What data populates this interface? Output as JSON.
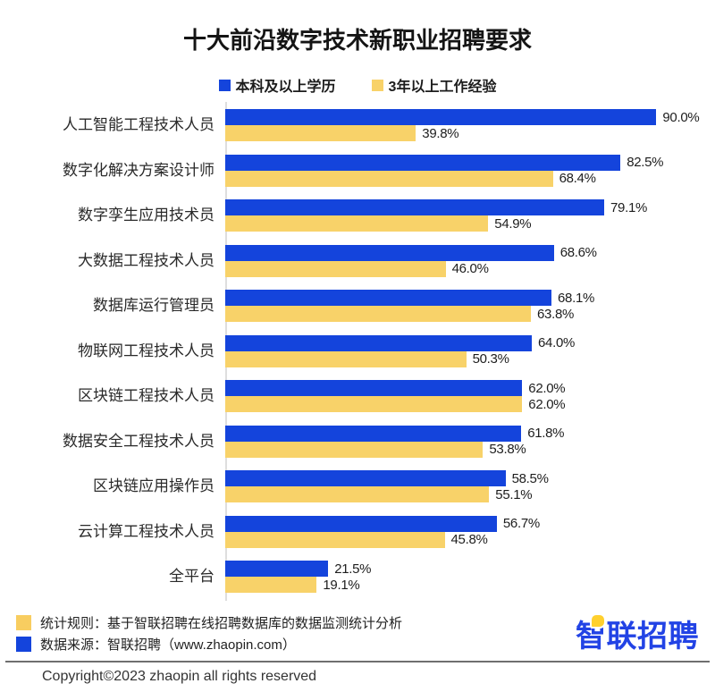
{
  "title": "十大前沿数字技术新职业招聘要求",
  "legend": {
    "items": [
      {
        "label": "本科及以上学历",
        "color": "#1444dc"
      },
      {
        "label": "3年以上工作经验",
        "color": "#f8d269"
      }
    ]
  },
  "chart_data": {
    "type": "bar",
    "orientation": "horizontal",
    "title": "十大前沿数字技术新职业招聘要求",
    "categories": [
      "人工智能工程技术人员",
      "数字化解决方案设计师",
      "数字孪生应用技术员",
      "大数据工程技术人员",
      "数据库运行管理员",
      "物联网工程技术人员",
      "区块链工程技术人员",
      "数据安全工程技术人员",
      "区块链应用操作员",
      "云计算工程技术人员",
      "全平台"
    ],
    "series": [
      {
        "name": "本科及以上学历",
        "color": "#1444dc",
        "values": [
          90.0,
          82.5,
          79.1,
          68.6,
          68.1,
          64.0,
          62.0,
          61.8,
          58.5,
          56.7,
          21.5
        ]
      },
      {
        "name": "3年以上工作经验",
        "color": "#f8d269",
        "values": [
          39.8,
          68.4,
          54.9,
          46.0,
          63.8,
          50.3,
          62.0,
          53.8,
          55.1,
          45.8,
          19.1
        ]
      }
    ],
    "value_suffix": "%",
    "value_decimals": 1,
    "xlim": [
      0,
      100
    ],
    "grid": false,
    "legend_position": "top"
  },
  "footer": {
    "notes": [
      {
        "marker_color": "#f8cd60",
        "text": "统计规则：基于智联招聘在线招聘数据库的数据监测统计分析"
      },
      {
        "marker_color": "#1444dc",
        "text": "数据来源：智联招聘（www.zhaopin.com）"
      }
    ],
    "copyright": "Copyright©2023 zhaopin all rights reserved",
    "logo_text": "智联招聘"
  },
  "colors": {
    "bar_blue": "#1444dc",
    "bar_yellow": "#f8d269",
    "logo_blue": "#2243e5",
    "logo_yellow": "#ffd02e",
    "axis_line": "#dedede",
    "divider": "#6f6f6f"
  }
}
